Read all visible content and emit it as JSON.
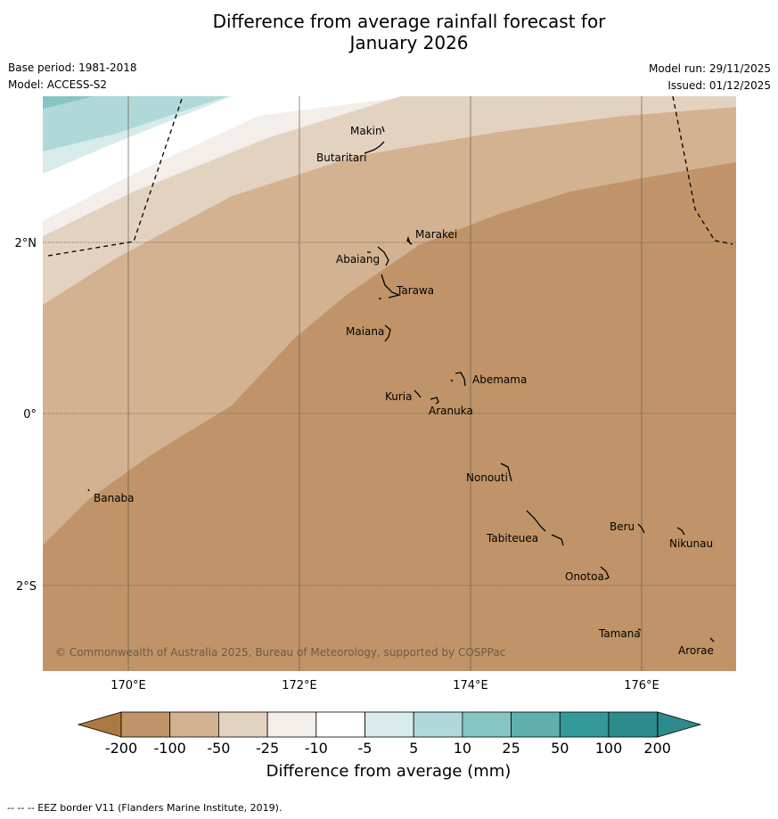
{
  "title_line1": "Difference from average rainfall forecast for",
  "title_line2": "January 2026",
  "base_period": "Base period: 1981-2018",
  "model": "Model: ACCESS-S2",
  "model_run": "Model run: 29/11/2025",
  "issued": "Issued: 01/12/2025",
  "latitude_labels": [
    "2°N",
    "0°",
    "2°S"
  ],
  "longitude_labels": [
    "170°E",
    "172°E",
    "174°E",
    "176°E"
  ],
  "islands": [
    "Makin",
    "Butaritari",
    "Marakei",
    "Abaiang",
    "Tarawa",
    "Maiana",
    "Abemama",
    "Kuria",
    "Aranuka",
    "Nonouti",
    "Banaba",
    "Beru",
    "Nikunau",
    "Tabiteuea",
    "Onotoa",
    "Tamana",
    "Arorae"
  ],
  "copyright": "© Commonwealth of Australia 2025, Bureau of Meteorology, supported by COSPPac",
  "legend": {
    "levels": [
      "-200",
      "-100",
      "-50",
      "-25",
      "-10",
      "-5",
      "5",
      "10",
      "25",
      "50",
      "100",
      "200"
    ],
    "colors": [
      "#ad7842",
      "#c09468",
      "#d2b291",
      "#e4d2c1",
      "#f3eee9",
      "#ffffff",
      "#d7ebea",
      "#b0d8d8",
      "#87c4c4",
      "#5eafae",
      "#339999",
      "#2e8b8b"
    ],
    "title": "Difference from average (mm)"
  },
  "footnote": "--  --  -- EEZ border V11 (Flanders Marine Institute, 2019)."
}
